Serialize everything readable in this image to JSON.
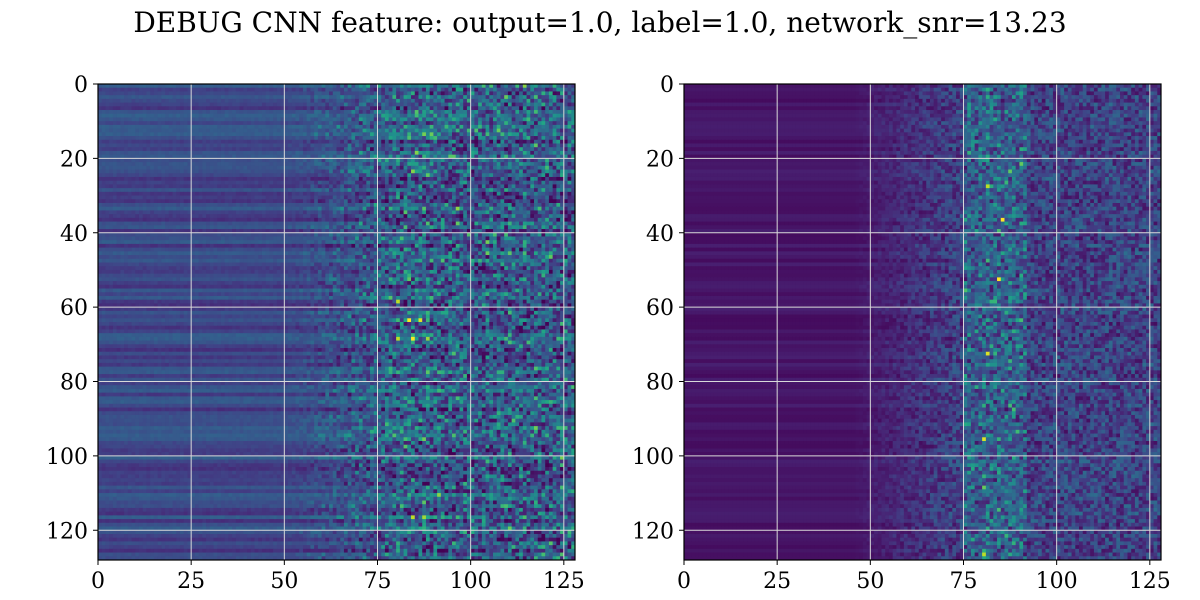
{
  "figure": {
    "title": "DEBUG CNN feature: output=1.0, label=1.0, network_snr=13.23"
  },
  "chart_data": [
    {
      "type": "heatmap",
      "colormap": "viridis",
      "rows": 128,
      "cols": 128,
      "xlim": [
        0,
        128
      ],
      "ylim": [
        128,
        0
      ],
      "x_ticks": [
        0,
        25,
        50,
        75,
        100,
        125
      ],
      "y_ticks": [
        0,
        20,
        40,
        60,
        80,
        100,
        120
      ],
      "x_tick_labels": [
        "0",
        "25",
        "50",
        "75",
        "100",
        "125"
      ],
      "y_tick_labels": [
        "0",
        "20",
        "40",
        "60",
        "80",
        "100",
        "120"
      ],
      "grid": true,
      "grid_color": "#d9d9d9",
      "hotspots": [
        {
          "x": 80,
          "y": 58,
          "value": 0.9
        },
        {
          "x": 83,
          "y": 63,
          "value": 1.0
        },
        {
          "x": 86,
          "y": 63,
          "value": 0.95
        },
        {
          "x": 80,
          "y": 68,
          "value": 0.9
        },
        {
          "x": 84,
          "y": 68,
          "value": 1.0
        },
        {
          "x": 88,
          "y": 68,
          "value": 0.85
        },
        {
          "x": 85,
          "y": 43,
          "value": 0.6
        },
        {
          "x": 86,
          "y": 27,
          "value": 0.6
        },
        {
          "x": 105,
          "y": 68,
          "value": 0.55
        },
        {
          "x": 110,
          "y": 3,
          "value": 0.5
        }
      ]
    },
    {
      "type": "heatmap",
      "colormap": "viridis",
      "rows": 128,
      "cols": 128,
      "xlim": [
        0,
        128
      ],
      "ylim": [
        128,
        0
      ],
      "x_ticks": [
        0,
        25,
        50,
        75,
        100,
        125
      ],
      "y_ticks": [
        0,
        20,
        40,
        60,
        80,
        100,
        120
      ],
      "x_tick_labels": [
        "0",
        "25",
        "50",
        "75",
        "100",
        "125"
      ],
      "y_tick_labels": [
        "0",
        "20",
        "40",
        "60",
        "80",
        "100",
        "120"
      ],
      "grid": true,
      "grid_color": "#d9d9d9",
      "hotspots": [
        {
          "x": 81,
          "y": 27,
          "value": 0.9
        },
        {
          "x": 85,
          "y": 36,
          "value": 1.0
        },
        {
          "x": 84,
          "y": 52,
          "value": 1.0
        },
        {
          "x": 81,
          "y": 72,
          "value": 0.95
        },
        {
          "x": 88,
          "y": 87,
          "value": 0.7
        },
        {
          "x": 80,
          "y": 95,
          "value": 0.95
        },
        {
          "x": 84,
          "y": 114,
          "value": 0.7
        },
        {
          "x": 80,
          "y": 126,
          "value": 0.9
        },
        {
          "x": 84,
          "y": 16,
          "value": 0.6
        },
        {
          "x": 83,
          "y": 3,
          "value": 0.55
        }
      ]
    }
  ]
}
